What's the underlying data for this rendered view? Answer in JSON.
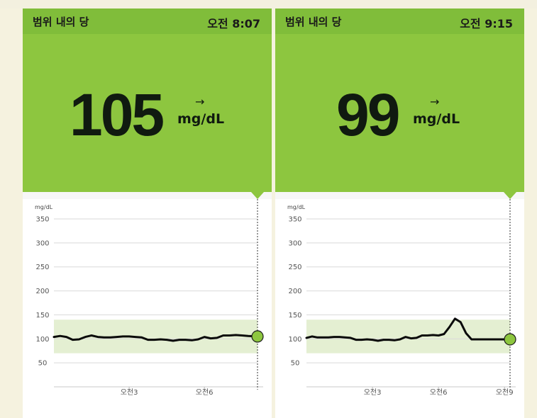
{
  "panels": [
    {
      "title": "범위 내의 당",
      "time": "오전 8:07",
      "value": "105",
      "trend_arrow": "→",
      "unit": "mg/dL",
      "chart_data": {
        "type": "line",
        "ylabel": "mg/dL",
        "ylim": [
          0,
          350
        ],
        "y_ticks": [
          50,
          100,
          150,
          200,
          250,
          300,
          350
        ],
        "x_labels": [
          "오전3",
          "오전6"
        ],
        "target_range": [
          70,
          140
        ],
        "x": [
          "0:00",
          "0:15",
          "0:30",
          "0:45",
          "1:00",
          "1:15",
          "1:30",
          "1:45",
          "2:00",
          "2:15",
          "2:30",
          "2:45",
          "3:00",
          "3:15",
          "3:30",
          "3:45",
          "4:00",
          "4:15",
          "4:30",
          "4:45",
          "5:00",
          "5:15",
          "5:30",
          "5:45",
          "6:00",
          "6:15",
          "6:30",
          "6:45",
          "7:00",
          "7:15",
          "7:30",
          "7:45",
          "8:07"
        ],
        "values": [
          104,
          106,
          104,
          98,
          99,
          104,
          107,
          104,
          103,
          103,
          104,
          105,
          105,
          104,
          103,
          98,
          98,
          99,
          98,
          96,
          98,
          98,
          97,
          99,
          104,
          101,
          102,
          107,
          107,
          108,
          107,
          106,
          105
        ],
        "grid": true,
        "current_value": 105
      }
    },
    {
      "title": "범위 내의 당",
      "time": "오전 9:15",
      "value": "99",
      "trend_arrow": "→",
      "unit": "mg/dL",
      "chart_data": {
        "type": "line",
        "ylabel": "mg/dL",
        "ylim": [
          0,
          350
        ],
        "y_ticks": [
          50,
          100,
          150,
          200,
          250,
          300,
          350
        ],
        "x_labels": [
          "오전3",
          "오전6",
          "오전9"
        ],
        "target_range": [
          70,
          140
        ],
        "x": [
          "0:00",
          "0:15",
          "0:30",
          "0:45",
          "1:00",
          "1:15",
          "1:30",
          "1:45",
          "2:00",
          "2:15",
          "2:30",
          "2:45",
          "3:00",
          "3:15",
          "3:30",
          "3:45",
          "4:00",
          "4:15",
          "4:30",
          "4:45",
          "5:00",
          "5:15",
          "5:30",
          "5:45",
          "6:00",
          "6:15",
          "6:30",
          "6:45",
          "7:00",
          "7:15",
          "7:30",
          "7:45",
          "8:00",
          "8:15",
          "8:30",
          "8:45",
          "9:00",
          "9:15"
        ],
        "values": [
          102,
          105,
          103,
          103,
          103,
          104,
          104,
          103,
          102,
          98,
          98,
          99,
          98,
          96,
          98,
          98,
          97,
          99,
          104,
          101,
          102,
          107,
          107,
          108,
          107,
          110,
          125,
          142,
          135,
          112,
          99,
          99,
          99,
          99,
          99,
          99,
          99,
          99
        ],
        "grid": true,
        "current_value": 99
      }
    }
  ],
  "colors": {
    "header": "#80bd3a",
    "reading_bg": "#8dc63f",
    "range_band": "#e4efd2",
    "line": "#0a0a0a",
    "marker": "#8dc63f"
  }
}
